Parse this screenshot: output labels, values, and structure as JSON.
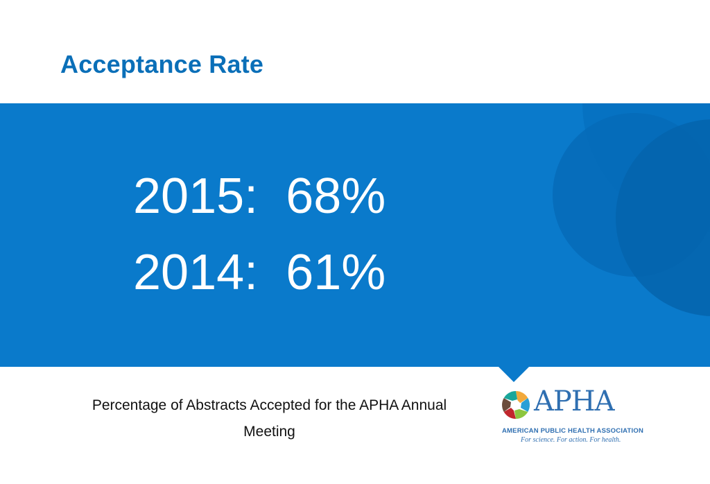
{
  "slide": {
    "title": "Acceptance Rate",
    "stats": [
      {
        "label": "2015:",
        "value": "68%"
      },
      {
        "label": "2014:",
        "value": "61%"
      }
    ],
    "caption": "Percentage of Abstracts Accepted for the APHA Annual Meeting"
  },
  "logo": {
    "wordmark": "APHA",
    "organization": "AMERICAN PUBLIC HEALTH ASSOCIATION",
    "tagline": "For science. For action. For health."
  },
  "colors": {
    "title": "#0a6fb8",
    "band": "#0a7acb",
    "text_on_band": "#ffffff",
    "logo_blue": "#2f6fb1"
  }
}
